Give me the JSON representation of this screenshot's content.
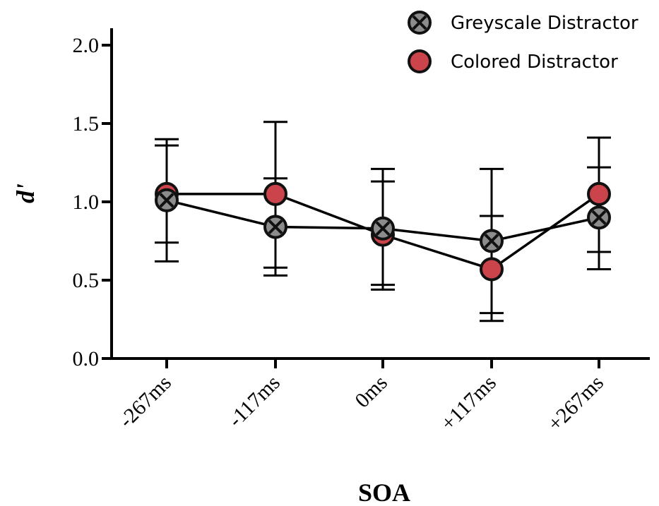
{
  "chart_data": {
    "type": "line",
    "categories": [
      "-267ms",
      "-117ms",
      "0ms",
      "+117ms",
      "+267ms"
    ],
    "xlabel": "SOA",
    "ylabel": "d'",
    "ylim": [
      0,
      2.0
    ],
    "yticks": [
      "0.0",
      "0.5",
      "1.0",
      "1.5",
      "2.0"
    ],
    "ytick_values": [
      0,
      0.5,
      1.0,
      1.5,
      2.0
    ],
    "grid": false,
    "legend_position": "top-right",
    "series": [
      {
        "name": "Greyscale Distractor",
        "marker": "circle-x",
        "fill": "#8c8c8c",
        "values": [
          1.01,
          0.84,
          0.83,
          0.75,
          0.9
        ],
        "err_low": [
          0.62,
          0.53,
          0.44,
          0.24,
          0.57
        ],
        "err_high": [
          1.4,
          1.15,
          1.21,
          1.21,
          1.22
        ]
      },
      {
        "name": "Colored Distractor",
        "marker": "circle",
        "fill": "#cc444b",
        "values": [
          1.05,
          1.05,
          0.79,
          0.57,
          1.05
        ],
        "err_low": [
          0.74,
          0.58,
          0.47,
          0.29,
          0.68
        ],
        "err_high": [
          1.36,
          1.51,
          1.13,
          0.91,
          1.41
        ]
      }
    ]
  }
}
